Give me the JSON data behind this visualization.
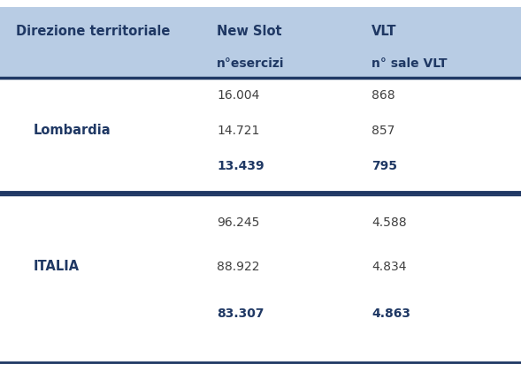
{
  "header_bg_color": "#b8cce4",
  "header_text_color": "#1f3864",
  "body_bg_color": "#ffffff",
  "separator_color": "#1f3864",
  "text_color": "#3f3f3f",
  "bold_text_color": "#1f3864",
  "col1_header": "Direzione territoriale",
  "col2_header": "New Slot",
  "col2_subheader": "n°esercizi",
  "col3_header": "VLT",
  "col3_subheader": "n° sale VLT",
  "sections": [
    {
      "region": "Lombardia",
      "rows": [
        {
          "new_slot": "16.004",
          "vlt": "868",
          "bold": false
        },
        {
          "new_slot": "14.721",
          "vlt": "857",
          "bold": false
        },
        {
          "new_slot": "13.439",
          "vlt": "795",
          "bold": true
        }
      ]
    },
    {
      "region": "ITALIA",
      "rows": [
        {
          "new_slot": "96.245",
          "vlt": "4.588",
          "bold": false
        },
        {
          "new_slot": "88.922",
          "vlt": "4.834",
          "bold": false
        },
        {
          "new_slot": "83.307",
          "vlt": "4.863",
          "bold": true
        }
      ]
    }
  ],
  "figsize": [
    5.89,
    4.21
  ],
  "dpi": 100
}
